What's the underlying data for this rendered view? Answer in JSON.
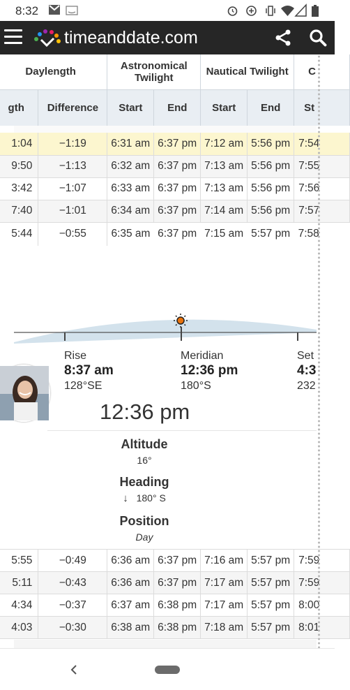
{
  "status": {
    "time": "8:32"
  },
  "app": {
    "logo_text": "timeanddate.com"
  },
  "table": {
    "headers_top": [
      "Daylength",
      "Astronomical Twilight",
      "Nautical Twilight",
      "C"
    ],
    "headers_sub": [
      "gth",
      "Difference",
      "Start",
      "End",
      "Start",
      "End",
      "St"
    ],
    "rows_top": [
      [
        "1:04",
        "−1:19",
        "6:31 am",
        "6:37 pm",
        "7:12 am",
        "5:56 pm",
        "7:54"
      ],
      [
        "9:50",
        "−1:13",
        "6:32 am",
        "6:37 pm",
        "7:13 am",
        "5:56 pm",
        "7:55"
      ],
      [
        "3:42",
        "−1:07",
        "6:33 am",
        "6:37 pm",
        "7:13 am",
        "5:56 pm",
        "7:56"
      ],
      [
        "7:40",
        "−1:01",
        "6:34 am",
        "6:37 pm",
        "7:14 am",
        "5:56 pm",
        "7:57"
      ],
      [
        "5:44",
        "−0:55",
        "6:35 am",
        "6:37 pm",
        "7:15 am",
        "5:57 pm",
        "7:58"
      ]
    ],
    "rows_bottom": [
      [
        "5:55",
        "−0:49",
        "6:36 am",
        "6:37 pm",
        "7:16 am",
        "5:57 pm",
        "7:59"
      ],
      [
        "5:11",
        "−0:43",
        "6:36 am",
        "6:37 pm",
        "7:17 am",
        "5:57 pm",
        "7:59"
      ],
      [
        "4:34",
        "−0:37",
        "6:37 am",
        "6:38 pm",
        "7:17 am",
        "5:57 pm",
        "8:00"
      ],
      [
        "4:03",
        "−0:30",
        "6:38 am",
        "6:38 pm",
        "7:18 am",
        "5:57 pm",
        "8:01"
      ]
    ]
  },
  "sun": {
    "rise": {
      "label": "Rise",
      "time": "8:37 am",
      "direction": "128°SE"
    },
    "meridian": {
      "label": "Meridian",
      "time": "12:36 pm",
      "direction": "180°S"
    },
    "set": {
      "label": "Set",
      "time": "4:3",
      "direction": "232"
    },
    "current_time": "12:36 pm",
    "altitude": {
      "label": "Altitude",
      "value": "16°"
    },
    "heading": {
      "label": "Heading",
      "arrow": "↓",
      "value": "180° S"
    },
    "position": {
      "label": "Position",
      "value": "Day"
    }
  },
  "colors": {
    "topbar": "#262626",
    "highlight": "#fcf6cf",
    "header": "#e9eef3",
    "sun": "#e8720c"
  }
}
